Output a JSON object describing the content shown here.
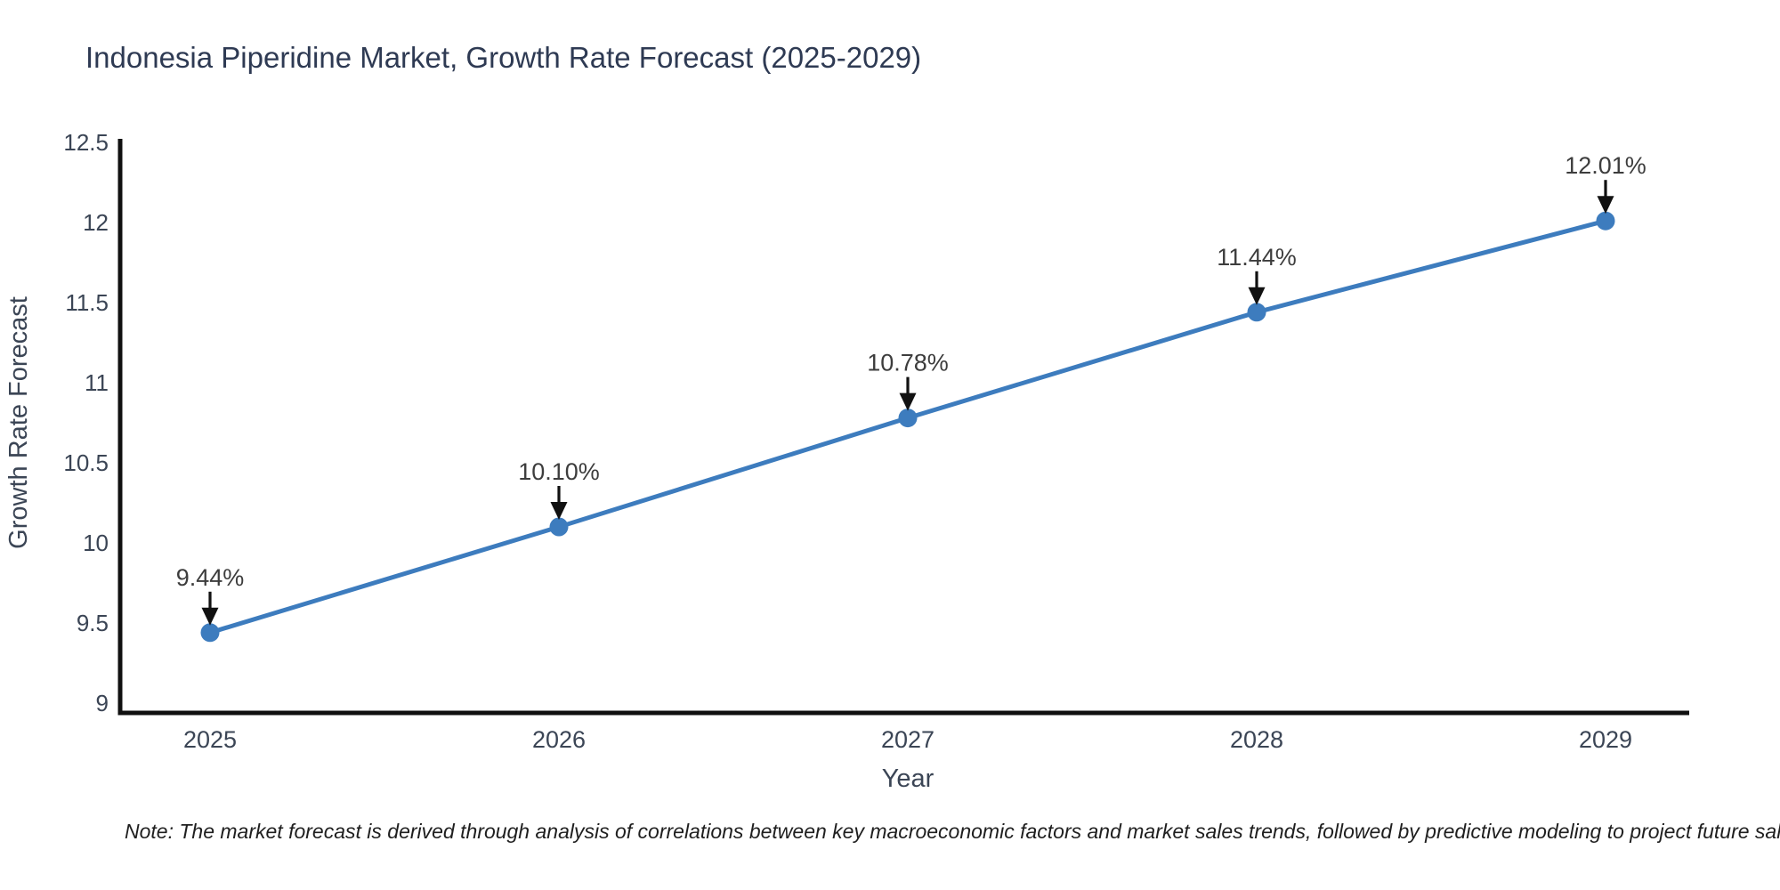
{
  "chart_data": {
    "type": "line",
    "title": "Indonesia Piperidine Market, Growth Rate Forecast (2025-2029)",
    "xlabel": "Year",
    "ylabel": "Growth Rate Forecast",
    "x": [
      "2025",
      "2026",
      "2027",
      "2028",
      "2029"
    ],
    "series": [
      {
        "name": "Growth Rate Forecast",
        "values": [
          9.44,
          10.1,
          10.78,
          11.44,
          12.01
        ]
      }
    ],
    "point_labels": [
      "9.44%",
      "10.10%",
      "10.78%",
      "11.44%",
      "12.01%"
    ],
    "ylim": [
      9,
      12.5
    ],
    "yticks": [
      9,
      9.5,
      10,
      10.5,
      11,
      11.5,
      12,
      12.5
    ],
    "ytick_labels": [
      "9",
      "9.5",
      "10",
      "10.5",
      "11",
      "11.5",
      "12",
      "12.5"
    ],
    "grid": false,
    "legend": "none",
    "line_color": "#3d7cbe",
    "marker_color": "#3d7cbe",
    "axis_color": "#101010",
    "annotation_arrow_color": "#111111",
    "note": "Note: The market forecast is derived through analysis of correlations between key macroeconomic factors and market sales trends, followed by predictive modeling to project future sal"
  },
  "colors": {
    "background": "#ffffff",
    "title": "#2e3a53",
    "tick": "#3b4555",
    "annotation": "#3d3d3d",
    "note": "#1f1f1f"
  }
}
